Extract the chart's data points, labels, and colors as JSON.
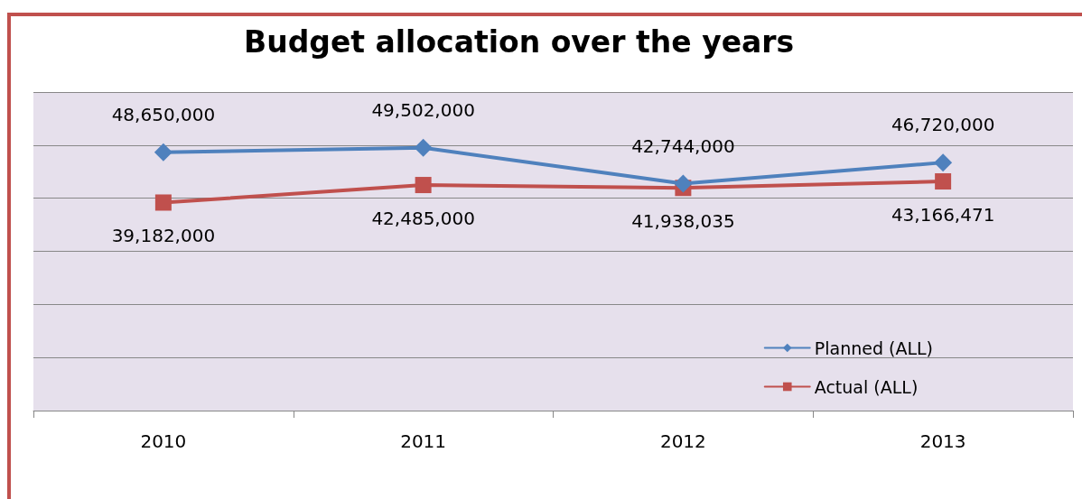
{
  "chart_data": {
    "type": "line",
    "title": "Budget allocation over the years",
    "categories": [
      "2010",
      "2011",
      "2012",
      "2013"
    ],
    "series": [
      {
        "name": "Planned (ALL)",
        "color": "#4f81bd",
        "marker": "diamond",
        "values": [
          48650000,
          49502000,
          42744000,
          46720000
        ],
        "value_labels": [
          "48,650,000",
          "49,502,000",
          "42,744,000",
          "46,720,000"
        ]
      },
      {
        "name": "Actual (ALL)",
        "color": "#c0504d",
        "marker": "square",
        "values": [
          39182000,
          42485000,
          41938035,
          43166471
        ],
        "value_labels": [
          "39,182,000",
          "42,485,000",
          "41,938,035",
          "43,166,471"
        ]
      }
    ],
    "ylim": [
      0,
      60000000
    ],
    "yticks": [
      {
        "value": 0,
        "label": null
      },
      {
        "value": 10000000,
        "label": null
      },
      {
        "value": 20000000,
        "label": null
      },
      {
        "value": 30000000,
        "label": null
      },
      {
        "value": 40000000,
        "label": null
      },
      {
        "value": 50000000,
        "label": null
      },
      {
        "value": 60000000,
        "label": null
      }
    ],
    "tick_labels": "x",
    "grid": "y",
    "legend": "bottom right",
    "line_style": "solid"
  }
}
